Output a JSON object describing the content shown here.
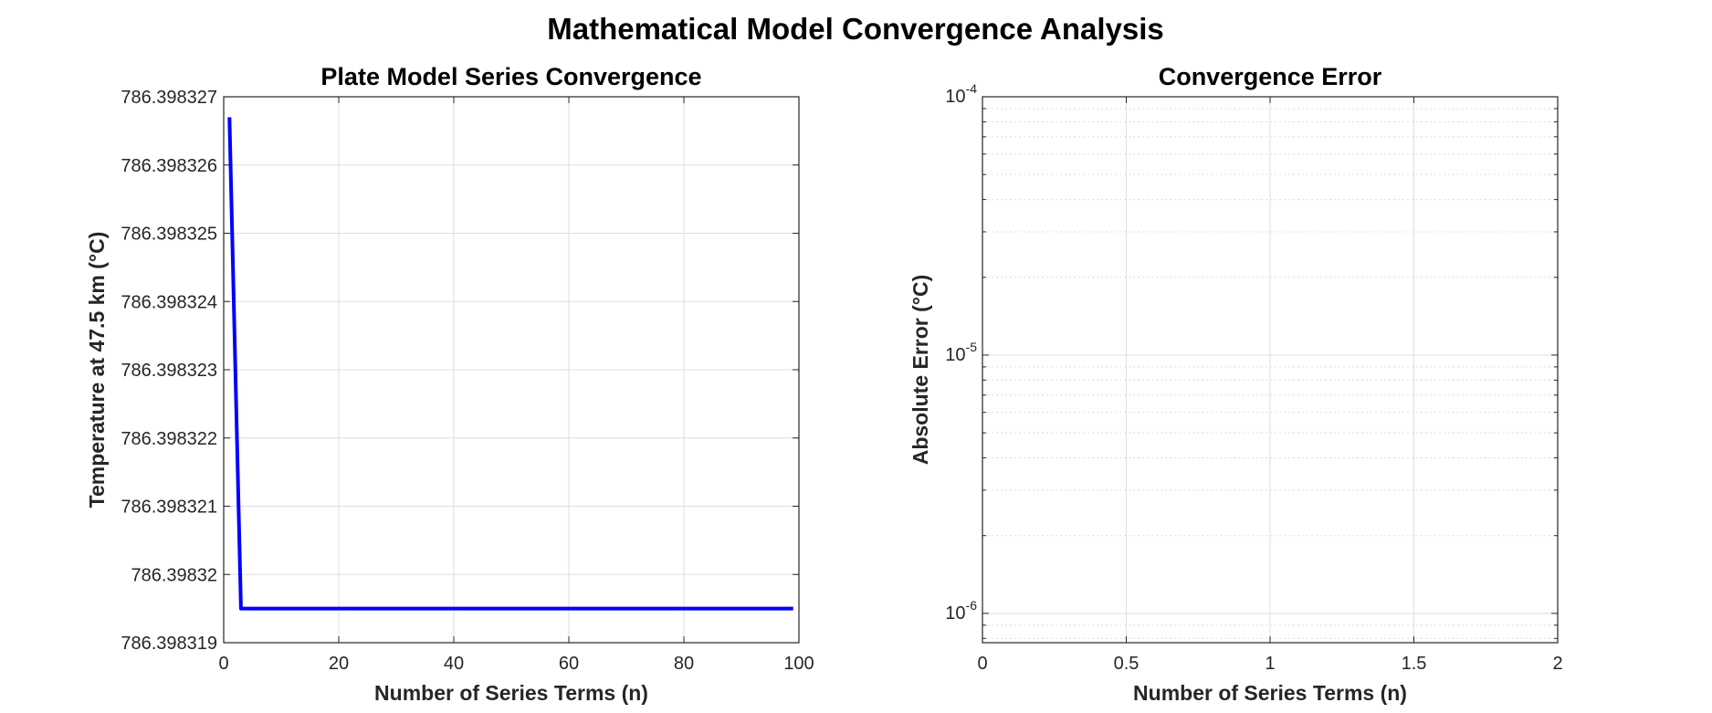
{
  "figure": {
    "title": "Mathematical Model Convergence Analysis"
  },
  "chart_data": [
    {
      "type": "line",
      "title": "Plate Model Series Convergence",
      "xlabel": "Number of Series Terms (n)",
      "ylabel": "Temperature at 47.5 km (°C)",
      "xlim": [
        0,
        100
      ],
      "ylim": [
        786.398319,
        786.398327
      ],
      "xticks": [
        0,
        20,
        40,
        60,
        80,
        100
      ],
      "xtick_labels": [
        "0",
        "20",
        "40",
        "60",
        "80",
        "100"
      ],
      "yticks": [
        786.398319,
        786.39832,
        786.398321,
        786.398322,
        786.398323,
        786.398324,
        786.398325,
        786.398326,
        786.398327
      ],
      "ytick_labels": [
        "786.398319",
        "786.39832",
        "786.398321",
        "786.398322",
        "786.398323",
        "786.398324",
        "786.398325",
        "786.398326",
        "786.398327"
      ],
      "grid": true,
      "series": [
        {
          "color": "#0000ff",
          "x": [
            1,
            3,
            5,
            10,
            20,
            30,
            40,
            50,
            60,
            70,
            80,
            90,
            99
          ],
          "y": [
            786.3983267,
            786.3983195,
            786.3983195,
            786.3983195,
            786.3983195,
            786.3983195,
            786.3983195,
            786.3983195,
            786.3983195,
            786.3983195,
            786.3983195,
            786.3983195,
            786.3983195
          ]
        }
      ]
    },
    {
      "type": "line",
      "title": "Convergence Error",
      "xlabel": "Number of Series Terms (n)",
      "ylabel": "Absolute Error (°C)",
      "xlim": [
        0,
        2
      ],
      "ylim": [
        7.7e-07,
        0.0001
      ],
      "yscale": "log",
      "xticks": [
        0,
        0.5,
        1,
        1.5,
        2
      ],
      "xtick_labels": [
        "0",
        "0.5",
        "1",
        "1.5",
        "2"
      ],
      "yticks": [
        1e-06,
        1e-05,
        0.0001
      ],
      "ytick_labels": [
        {
          "base": "10",
          "exp": "-6"
        },
        {
          "base": "10",
          "exp": "-5"
        },
        {
          "base": "10",
          "exp": "-4"
        }
      ],
      "grid": true,
      "minor_grid": true,
      "series": []
    }
  ]
}
